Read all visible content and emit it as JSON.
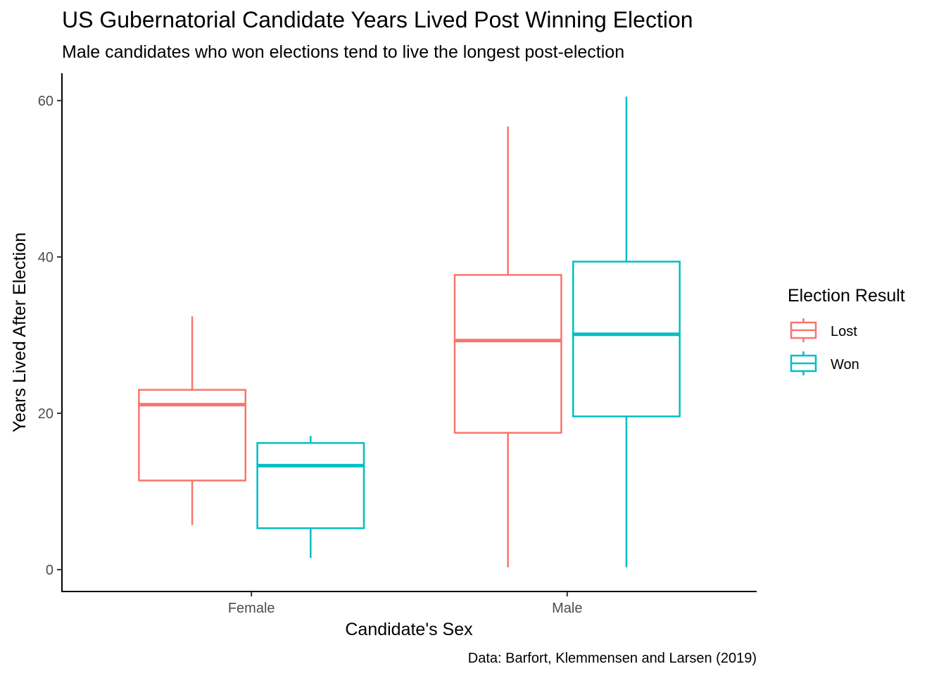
{
  "chart_data": {
    "type": "box",
    "title": "US Gubernatorial Candidate Years Lived Post Winning Election",
    "subtitle": "Male candidates who won elections tend to live the longest post-election",
    "xlabel": "Candidate's Sex",
    "ylabel": "Years Lived After Election",
    "caption": "Data: Barfort, Klemmensen and Larsen (2019)",
    "categories": [
      "Female",
      "Male"
    ],
    "ylim": [
      -2.8,
      63.5
    ],
    "yticks": [
      0,
      20,
      40,
      60
    ],
    "grid": false,
    "legend": {
      "title": "Election Result",
      "placement": "right"
    },
    "series": [
      {
        "name": "Lost",
        "color": "#F8766D",
        "boxes": [
          {
            "category": "Female",
            "min": 5.7,
            "q1": 11.4,
            "median": 21.1,
            "q3": 23.0,
            "max": 32.4
          },
          {
            "category": "Male",
            "min": 0.3,
            "q1": 17.5,
            "median": 29.3,
            "q3": 37.7,
            "max": 56.7
          }
        ]
      },
      {
        "name": "Won",
        "color": "#00BFC4",
        "boxes": [
          {
            "category": "Female",
            "min": 1.5,
            "q1": 5.3,
            "median": 13.3,
            "q3": 16.2,
            "max": 17.1
          },
          {
            "category": "Male",
            "min": 0.3,
            "q1": 19.6,
            "median": 30.1,
            "q3": 39.4,
            "max": 60.5
          }
        ]
      }
    ]
  }
}
